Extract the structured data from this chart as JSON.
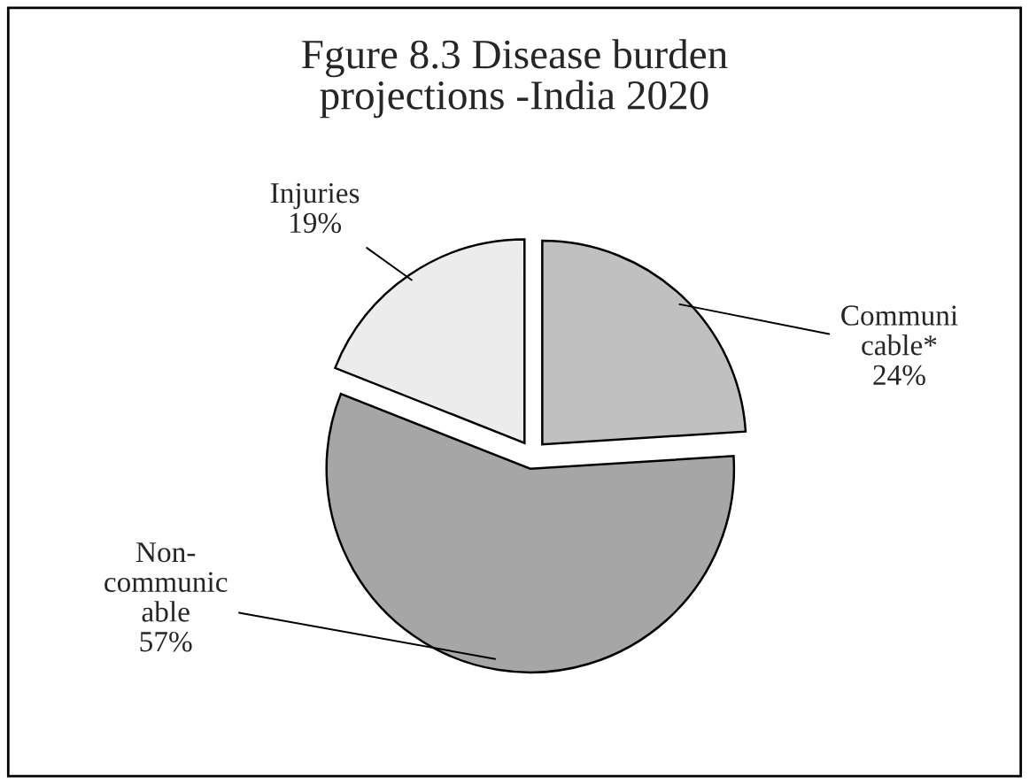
{
  "chart_data": {
    "type": "pie",
    "title": "Fgure 8.3 Disease burden\nprojections -India 2020",
    "categories": [
      "Communi\ncable*",
      "Non-\ncommunic\nable",
      "Injuries"
    ],
    "values": [
      24,
      57,
      19
    ],
    "value_labels": [
      "24%",
      "57%",
      "19%"
    ],
    "colors": [
      "#c0c0c0",
      "#a6a6a6",
      "#ececec"
    ],
    "legend": false
  }
}
